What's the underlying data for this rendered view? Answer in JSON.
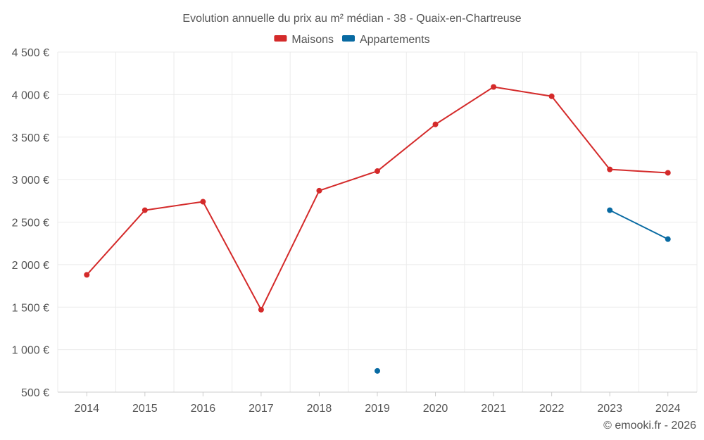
{
  "chart_data": {
    "type": "line",
    "title": "Evolution annuelle du prix au m² médian - 38 - Quaix-en-Chartreuse",
    "x": [
      "2014",
      "2015",
      "2016",
      "2017",
      "2018",
      "2019",
      "2020",
      "2021",
      "2022",
      "2023",
      "2024"
    ],
    "ylim": [
      500,
      4500
    ],
    "yticks": [
      500,
      1000,
      1500,
      2000,
      2500,
      3000,
      3500,
      4000,
      4500
    ],
    "ytick_labels": [
      "500 €",
      "1 000 €",
      "1 500 €",
      "2 000 €",
      "2 500 €",
      "3 000 €",
      "3 500 €",
      "4 000 €",
      "4 500 €"
    ],
    "grid": true,
    "legend_position": "top-center",
    "series": [
      {
        "name": "Maisons",
        "color": "#d42a2a",
        "values": [
          1880,
          2640,
          2740,
          1470,
          2870,
          3100,
          3650,
          4090,
          3980,
          3120,
          3080
        ]
      },
      {
        "name": "Appartements",
        "color": "#086aa2",
        "values": [
          null,
          null,
          null,
          null,
          null,
          750,
          null,
          null,
          null,
          2640,
          2300
        ]
      }
    ]
  },
  "credit": "© emooki.fr - 2026"
}
